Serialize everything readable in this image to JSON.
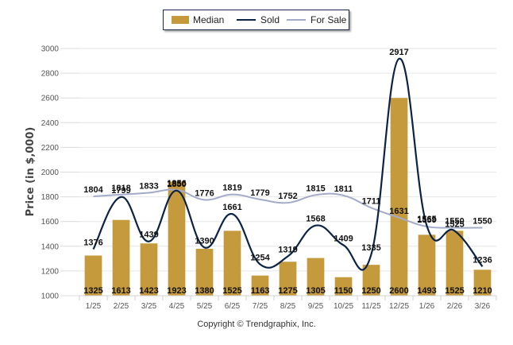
{
  "chart_data": {
    "type": "bar",
    "title": "",
    "xlabel": "",
    "ylabel": "Price (in $,000)",
    "ylim": [
      1000,
      3000
    ],
    "y_ticks": [
      1000,
      1200,
      1400,
      1600,
      1800,
      2000,
      2200,
      2400,
      2600,
      2800,
      3000
    ],
    "grid": true,
    "legend_position": "top-center",
    "categories": [
      "1/25",
      "2/25",
      "3/25",
      "4/25",
      "5/25",
      "6/25",
      "7/25",
      "8/25",
      "9/25",
      "10/25",
      "11/25",
      "12/25",
      "1/26",
      "2/26",
      "3/26"
    ],
    "series": [
      {
        "name": "Median",
        "type": "bar",
        "color": "#c49a3c",
        "values": [
          1325,
          1613,
          1423,
          1923,
          1380,
          1525,
          1163,
          1275,
          1305,
          1150,
          1250,
          2600,
          1493,
          1525,
          1210
        ]
      },
      {
        "name": "Sold",
        "type": "line",
        "color": "#0d2345",
        "values": [
          1376,
          1799,
          1439,
          1850,
          1390,
          1661,
          1254,
          1319,
          1568,
          1409,
          1335,
          2917,
          1565,
          1525,
          1236
        ]
      },
      {
        "name": "For Sale",
        "type": "line",
        "color": "#a4abc8",
        "values": [
          1804,
          1818,
          1833,
          1856,
          1776,
          1819,
          1779,
          1752,
          1815,
          1811,
          1711,
          1631,
          1559,
          1550,
          1550
        ]
      }
    ]
  },
  "legend": {
    "items": [
      {
        "label": "Median"
      },
      {
        "label": "Sold"
      },
      {
        "label": "For Sale"
      }
    ]
  },
  "footer": {
    "copyright": "Copyright © Trendgraphix, Inc."
  }
}
